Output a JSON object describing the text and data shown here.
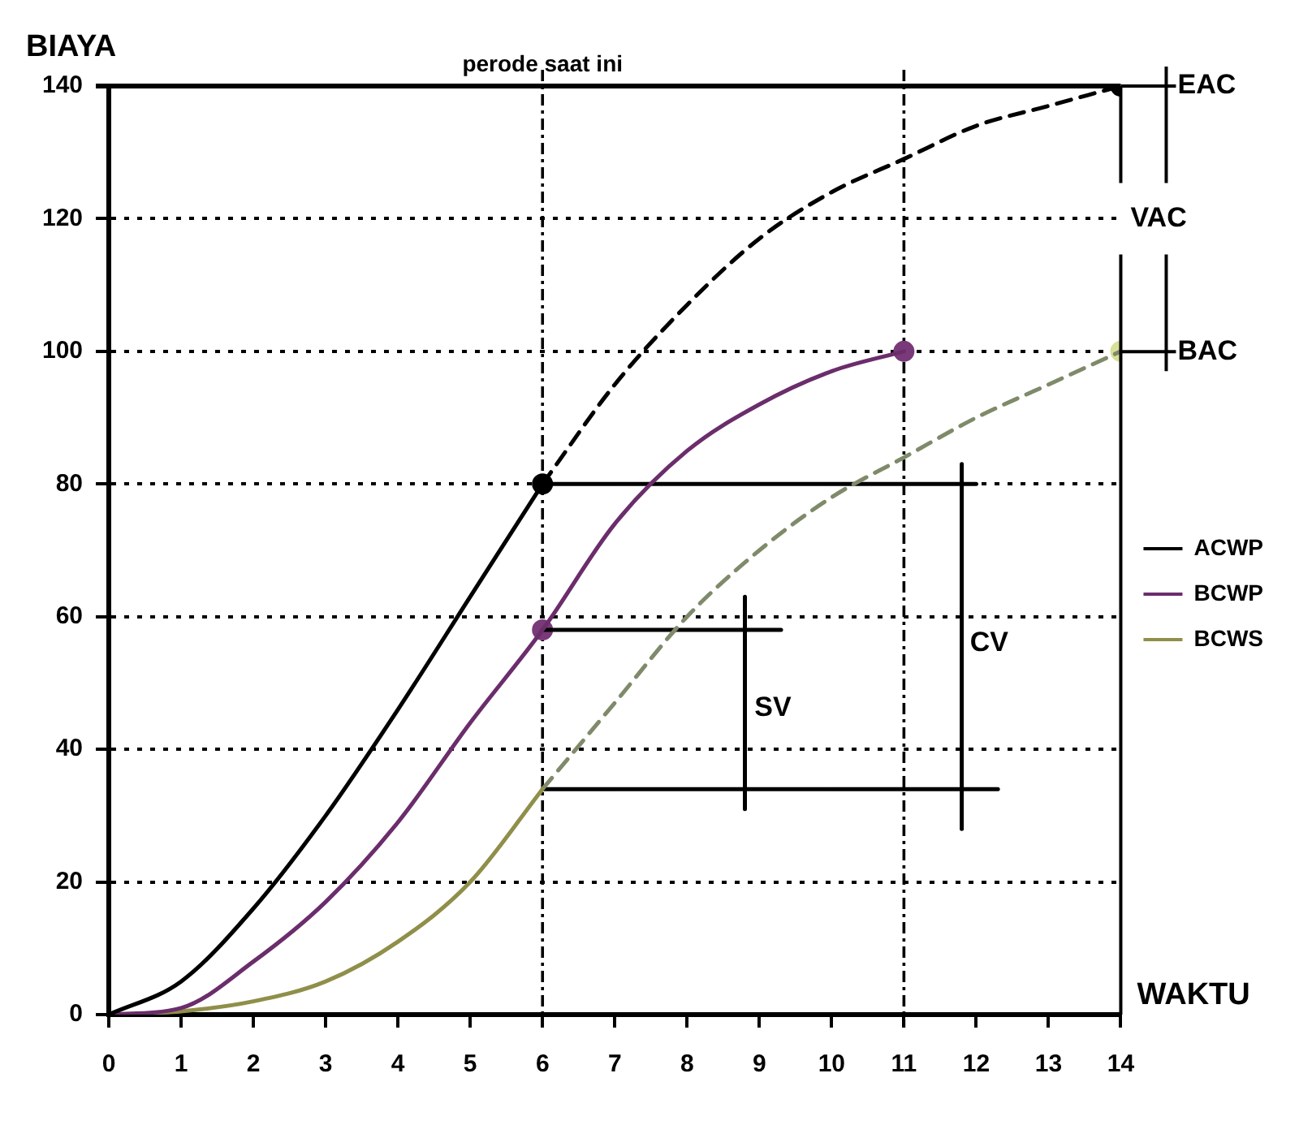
{
  "chart_data": {
    "type": "line",
    "xlabel": "WAKTU",
    "ylabel": "BIAYA",
    "xlim": [
      0,
      14
    ],
    "xticks": [
      0,
      1,
      2,
      3,
      4,
      5,
      6,
      7,
      8,
      9,
      10,
      11,
      12,
      13,
      14
    ],
    "ylim": [
      0,
      140
    ],
    "yticks": [
      0,
      20,
      40,
      60,
      80,
      100,
      120,
      140
    ],
    "grid": "y",
    "legend": "right",
    "series": [
      {
        "name": "ACWP",
        "type": "line",
        "color": "#000000",
        "line_style": "solid",
        "x": [
          0,
          1,
          2,
          3,
          4,
          5,
          6
        ],
        "values": [
          0,
          5,
          16,
          30,
          46,
          63,
          80
        ]
      },
      {
        "type": "line",
        "color": "#000000",
        "line_style": "dashed",
        "x": [
          6,
          7,
          8,
          9,
          10,
          11,
          12,
          13,
          14
        ],
        "values": [
          80,
          95,
          107,
          117,
          124,
          129,
          134,
          137,
          140
        ]
      },
      {
        "name": "BCWP",
        "type": "line",
        "color": "#6b2d6b",
        "line_style": "solid",
        "x": [
          0,
          1,
          2,
          3,
          4,
          5,
          6,
          7,
          8,
          9,
          10,
          11
        ],
        "values": [
          0,
          1,
          8,
          17,
          29,
          44,
          58,
          74,
          85,
          92,
          97,
          100
        ]
      },
      {
        "name": "BCWS",
        "type": "line",
        "color": "#8f8f4a",
        "line_style": "solid",
        "x": [
          0,
          1,
          2,
          3,
          4,
          5,
          6
        ],
        "values": [
          0,
          0.5,
          2,
          5,
          11,
          20,
          34
        ]
      },
      {
        "type": "line",
        "color": "#7f8a6a",
        "line_style": "dashed",
        "x": [
          6,
          7,
          8,
          9,
          10,
          11,
          12,
          13,
          14
        ],
        "values": [
          34,
          47,
          60,
          70,
          78,
          84,
          90,
          95,
          100
        ]
      },
      {
        "type": "line",
        "color": "#000000",
        "line_style": "solid",
        "x": [
          6,
          12
        ],
        "values": [
          80,
          80
        ]
      },
      {
        "type": "line",
        "color": "#000000",
        "line_style": "solid",
        "x": [
          6,
          9.3
        ],
        "values": [
          58,
          58
        ]
      },
      {
        "type": "line",
        "color": "#000000",
        "line_style": "solid",
        "x": [
          6,
          12.3
        ],
        "values": [
          34,
          34
        ]
      },
      {
        "type": "line",
        "color": "#000000",
        "line_style": "solid",
        "x": [
          8.8,
          8.8
        ],
        "values": [
          31,
          63
        ]
      },
      {
        "type": "line",
        "color": "#000000",
        "line_style": "solid",
        "x": [
          11.8,
          11.8
        ],
        "values": [
          28,
          83
        ]
      },
      {
        "type": "scatter",
        "color": "#000000",
        "marker": "circle",
        "x": [
          6,
          14
        ],
        "values": [
          80,
          140
        ]
      },
      {
        "type": "scatter",
        "color": "#7a3a7a",
        "marker": "circle",
        "x": [
          6,
          11
        ],
        "values": [
          58,
          100
        ]
      },
      {
        "type": "scatter",
        "color": "#d8e09a",
        "marker": "circle",
        "x": [
          14
        ],
        "values": [
          100
        ]
      }
    ],
    "ref_lines": [
      {
        "axis": "x",
        "value": 6,
        "label": "perode saat ini",
        "line_style": "dashed"
      },
      {
        "axis": "x",
        "value": 11,
        "line_style": "dashed"
      }
    ],
    "annotations": [
      "EAC",
      "VAC",
      "BAC",
      "SV",
      "CV"
    ]
  }
}
